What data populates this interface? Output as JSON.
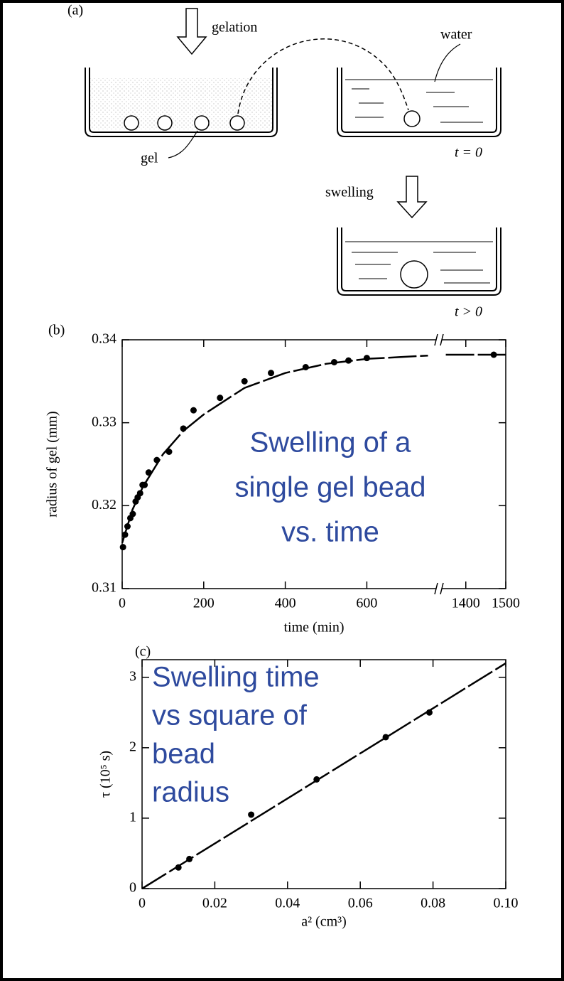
{
  "panel_a": {
    "label": "(a)",
    "arrow_1": "gelation",
    "water": "water",
    "gel": "gel",
    "t0": "t = 0",
    "arrow_2": "swelling",
    "t1": "t > 0"
  },
  "chart_data": [
    {
      "type": "scatter",
      "panel": "(b)",
      "xlabel": "time (min)",
      "ylabel": "radius of gel (mm)",
      "annotation": [
        "Swelling of a",
        "single gel bead",
        "vs. time"
      ],
      "xlim": [
        0,
        1500
      ],
      "xbreak": [
        770,
        1340
      ],
      "xticks": [
        0,
        200,
        400,
        600,
        1400,
        1500
      ],
      "ylim": [
        0.31,
        0.34
      ],
      "yticks": [
        0.31,
        0.32,
        0.33,
        0.34
      ],
      "series": [
        {
          "mode": "markers",
          "color": "#000000",
          "x": [
            2,
            7,
            13,
            20,
            26,
            33,
            38,
            44,
            50,
            55,
            65,
            85,
            115,
            150,
            175,
            240,
            300,
            365,
            450,
            520,
            555,
            600,
            1470
          ],
          "values": [
            0.315,
            0.3165,
            0.3175,
            0.3185,
            0.319,
            0.3205,
            0.321,
            0.3215,
            0.3225,
            0.3225,
            0.324,
            0.3255,
            0.3265,
            0.3293,
            0.3315,
            0.333,
            0.335,
            0.336,
            0.3367,
            0.3373,
            0.3375,
            0.3378,
            0.3382
          ]
        },
        {
          "mode": "dashed-line",
          "color": "#000000",
          "x": [
            0,
            25,
            50,
            100,
            150,
            200,
            250,
            300,
            400,
            500,
            600,
            750,
            null,
            1350,
            1500
          ],
          "values": [
            0.3155,
            0.3195,
            0.3222,
            0.3262,
            0.329,
            0.331,
            0.3326,
            0.3342,
            0.336,
            0.3371,
            0.3377,
            0.3381,
            null,
            0.3382,
            0.3382
          ]
        }
      ]
    },
    {
      "type": "scatter",
      "panel": "(c)",
      "xlabel": "a² (cm³)",
      "ylabel": "τ (10⁵ s)",
      "annotation": [
        "Swelling time",
        "vs square of",
        "bead",
        "radius"
      ],
      "xlim": [
        0,
        0.1
      ],
      "xticks": [
        0,
        0.02,
        0.04,
        0.06,
        0.08,
        {
          "value": 0.1,
          "label": "0.10"
        }
      ],
      "ylim": [
        0,
        3.25
      ],
      "yticks": [
        0,
        1,
        2,
        3
      ],
      "series": [
        {
          "mode": "markers",
          "color": "#000000",
          "x": [
            0.01,
            0.013,
            0.03,
            0.048,
            0.067,
            0.079
          ],
          "values": [
            0.3,
            0.42,
            1.05,
            1.55,
            2.15,
            2.5
          ]
        },
        {
          "mode": "dashed-line",
          "color": "#000000",
          "x": [
            0,
            0.1
          ],
          "values": [
            0,
            3.2
          ]
        }
      ]
    }
  ]
}
